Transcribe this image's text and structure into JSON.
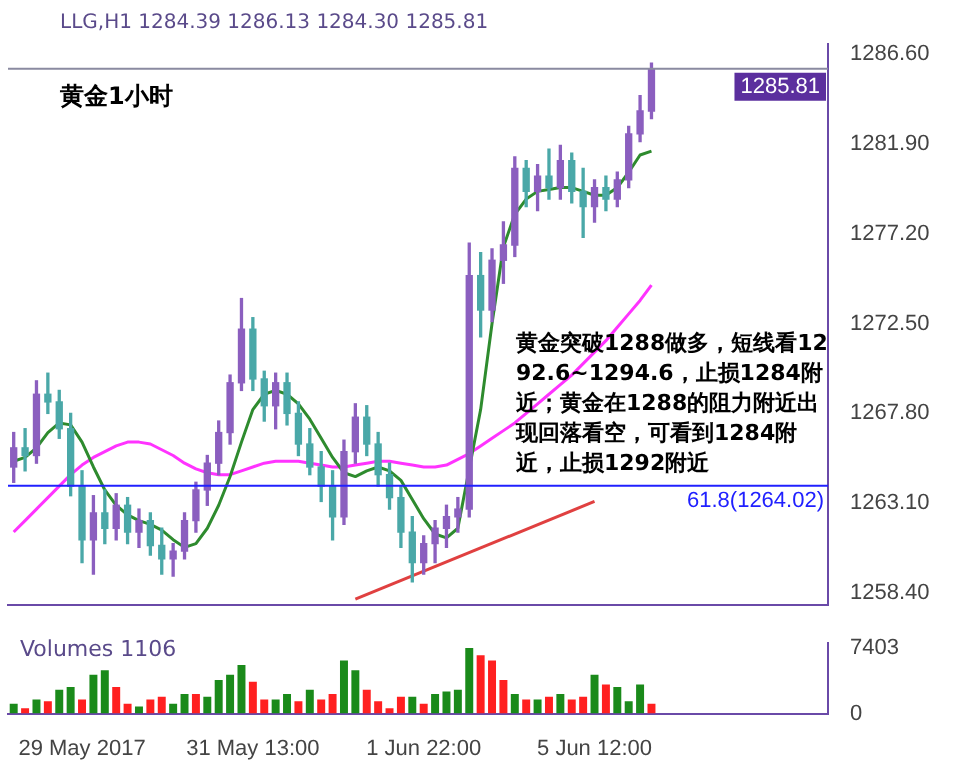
{
  "chart_data": [
    {
      "type": "candlestick",
      "categories": [
        null,
        null,
        null,
        null,
        null,
        null,
        null,
        null,
        null,
        null,
        null,
        null,
        null,
        null,
        null,
        null,
        null,
        null,
        null,
        null,
        null,
        null,
        null,
        null,
        null,
        null,
        null,
        null,
        null,
        null,
        null,
        null,
        null,
        null,
        null,
        null,
        null,
        null,
        null,
        null,
        null,
        null,
        null,
        null,
        null,
        null,
        null,
        null,
        null,
        null,
        null,
        null,
        null,
        null,
        null,
        null,
        null,
        null,
        null,
        null,
        null,
        null,
        null,
        null,
        null,
        null,
        null,
        null,
        null,
        null,
        null,
        null
      ],
      "ohlc": [
        [
          1265.0,
          1266.8,
          1264.2,
          1266.0
        ],
        [
          1266.0,
          1267.0,
          1264.8,
          1265.6
        ],
        [
          1265.6,
          1269.5,
          1265.2,
          1268.8
        ],
        [
          1268.8,
          1269.9,
          1267.8,
          1268.4
        ],
        [
          1268.4,
          1269.0,
          1266.5,
          1267.0
        ],
        [
          1267.0,
          1267.8,
          1263.5,
          1264.0
        ],
        [
          1264.0,
          1264.8,
          1260.0,
          1261.2
        ],
        [
          1261.2,
          1263.5,
          1259.4,
          1262.6
        ],
        [
          1262.6,
          1263.8,
          1261.0,
          1261.8
        ],
        [
          1261.8,
          1263.6,
          1261.2,
          1263.0
        ],
        [
          1263.0,
          1263.4,
          1261.0,
          1261.6
        ],
        [
          1261.6,
          1262.8,
          1260.8,
          1262.2
        ],
        [
          1262.2,
          1262.6,
          1260.4,
          1260.9
        ],
        [
          1260.9,
          1261.8,
          1259.4,
          1260.2
        ],
        [
          1260.2,
          1261.0,
          1259.3,
          1260.6
        ],
        [
          1260.6,
          1262.6,
          1260.2,
          1262.2
        ],
        [
          1262.2,
          1264.2,
          1261.6,
          1263.8
        ],
        [
          1263.8,
          1265.6,
          1263.0,
          1265.2
        ],
        [
          1265.2,
          1267.4,
          1264.6,
          1266.8
        ],
        [
          1266.8,
          1269.8,
          1266.2,
          1269.4
        ],
        [
          1269.4,
          1273.8,
          1269.0,
          1272.2
        ],
        [
          1272.2,
          1272.8,
          1269.0,
          1269.6
        ],
        [
          1269.6,
          1270.0,
          1267.4,
          1268.2
        ],
        [
          1268.2,
          1269.9,
          1267.0,
          1269.4
        ],
        [
          1269.4,
          1269.9,
          1267.2,
          1267.8
        ],
        [
          1267.8,
          1268.4,
          1265.6,
          1266.2
        ],
        [
          1266.2,
          1267.0,
          1264.6,
          1265.0
        ],
        [
          1265.0,
          1265.8,
          1263.2,
          1264.0
        ],
        [
          1264.0,
          1264.8,
          1261.2,
          1262.4
        ],
        [
          1262.4,
          1266.4,
          1262.0,
          1265.8
        ],
        [
          1265.8,
          1268.3,
          1265.2,
          1267.6
        ],
        [
          1267.6,
          1268.2,
          1265.6,
          1266.2
        ],
        [
          1266.2,
          1266.8,
          1264.0,
          1264.6
        ],
        [
          1264.6,
          1265.2,
          1262.8,
          1263.4
        ],
        [
          1263.4,
          1264.0,
          1260.8,
          1261.6
        ],
        [
          1261.6,
          1262.4,
          1259.0,
          1260.0
        ],
        [
          1260.0,
          1261.4,
          1259.4,
          1261.0
        ],
        [
          1261.0,
          1262.2,
          1260.0,
          1261.8
        ],
        [
          1261.8,
          1263.0,
          1260.8,
          1262.4
        ],
        [
          1262.4,
          1263.4,
          1261.6,
          1262.8
        ],
        [
          1262.8,
          1276.7,
          1262.4,
          1275.0
        ],
        [
          1275.0,
          1276.2,
          1271.8,
          1273.2
        ],
        [
          1273.2,
          1276.4,
          1272.6,
          1275.8
        ],
        [
          1275.8,
          1277.8,
          1274.6,
          1276.6
        ],
        [
          1276.6,
          1281.2,
          1276.0,
          1280.6
        ],
        [
          1280.6,
          1281.0,
          1278.6,
          1279.4
        ],
        [
          1279.4,
          1280.8,
          1278.4,
          1280.2
        ],
        [
          1280.2,
          1281.6,
          1279.0,
          1279.6
        ],
        [
          1279.6,
          1281.8,
          1279.0,
          1281.0
        ],
        [
          1281.0,
          1281.4,
          1278.8,
          1279.4
        ],
        [
          1279.4,
          1280.6,
          1277.0,
          1278.6
        ],
        [
          1278.6,
          1280.0,
          1277.8,
          1279.6
        ],
        [
          1279.6,
          1280.2,
          1278.4,
          1279.0
        ],
        [
          1279.0,
          1280.4,
          1278.6,
          1280.0
        ],
        [
          1280.0,
          1282.8,
          1279.6,
          1282.4
        ],
        [
          1282.4,
          1284.4,
          1282.0,
          1283.6
        ],
        [
          1283.6,
          1286.1,
          1283.2,
          1285.81
        ],
        null,
        null,
        null,
        null,
        null,
        null,
        null,
        null,
        null,
        null,
        null,
        null,
        null,
        null,
        null
      ],
      "colors": [
        "#8b5fbf",
        "#4aa8a8",
        "#8b5fbf",
        "#4aa8a8",
        "#4aa8a8",
        "#4aa8a8",
        "#4aa8a8",
        "#8b5fbf",
        "#4aa8a8",
        "#8b5fbf",
        "#4aa8a8",
        "#8b5fbf",
        "#4aa8a8",
        "#4aa8a8",
        "#8b5fbf",
        "#8b5fbf",
        "#8b5fbf",
        "#8b5fbf",
        "#8b5fbf",
        "#8b5fbf",
        "#8b5fbf",
        "#4aa8a8",
        "#4aa8a8",
        "#8b5fbf",
        "#4aa8a8",
        "#4aa8a8",
        "#4aa8a8",
        "#4aa8a8",
        "#4aa8a8",
        "#8b5fbf",
        "#8b5fbf",
        "#4aa8a8",
        "#4aa8a8",
        "#4aa8a8",
        "#4aa8a8",
        "#4aa8a8",
        "#8b5fbf",
        "#8b5fbf",
        "#8b5fbf",
        "#8b5fbf",
        "#8b5fbf",
        "#4aa8a8",
        "#8b5fbf",
        "#8b5fbf",
        "#8b5fbf",
        "#4aa8a8",
        "#8b5fbf",
        "#4aa8a8",
        "#8b5fbf",
        "#4aa8a8",
        "#4aa8a8",
        "#8b5fbf",
        "#4aa8a8",
        "#8b5fbf",
        "#8b5fbf",
        "#8b5fbf",
        "#8b5fbf",
        null,
        null,
        null,
        null,
        null,
        null,
        null,
        null,
        null,
        null,
        null,
        null,
        null,
        null,
        null
      ],
      "series": [
        {
          "type": "line",
          "color": "#2e8b2e",
          "values": [
            1265.3,
            1265.5,
            1266,
            1266.8,
            1267.3,
            1267.2,
            1266.3,
            1265,
            1263.8,
            1263,
            1262.5,
            1262.2,
            1262,
            1261.7,
            1261.2,
            1260.8,
            1261,
            1261.8,
            1263,
            1264.5,
            1266.3,
            1268,
            1268.8,
            1269,
            1268.8,
            1268.3,
            1267.5,
            1266.5,
            1265.5,
            1264.7,
            1264.5,
            1264.8,
            1265,
            1264.8,
            1264.3,
            1263.3,
            1262.3,
            1261.5,
            1261.3,
            1261.8,
            null,
            1268,
            1272.5,
            1276.5,
            1278.2,
            1279,
            1279.4,
            1279.5,
            1279.6,
            1279.6,
            1279.4,
            1279.2,
            1279.2,
            1279.6,
            1280.4,
            1281.3,
            1281.5,
            null,
            null,
            null,
            null,
            null,
            null,
            null,
            null,
            null,
            null,
            null,
            null,
            null,
            null,
            null
          ]
        },
        {
          "type": "line",
          "color": "#ff33ff",
          "values": [
            1261.6,
            1262.2,
            1262.8,
            1263.4,
            1264,
            1264.6,
            1265.1,
            1265.5,
            1265.8,
            1266.1,
            1266.3,
            1266.3,
            1266.2,
            1265.9,
            1265.6,
            1265.2,
            1264.9,
            1264.7,
            1264.6,
            1264.6,
            1264.8,
            1265,
            1265.2,
            1265.3,
            1265.3,
            1265.3,
            1265.2,
            1265.1,
            1265,
            1265,
            1265.1,
            1265.2,
            1265.3,
            1265.3,
            1265.2,
            1265.1,
            1265,
            1265,
            1265.1,
            1265.4,
            1265.7,
            1266.1,
            1266.5,
            1266.9,
            1267.3,
            1267.8,
            1268.3,
            1268.8,
            1269.3,
            1269.8,
            1270.4,
            1271,
            1271.6,
            1272.3,
            1273,
            1273.7,
            1274.5,
            null,
            null,
            null,
            null,
            null,
            null,
            null,
            null,
            null,
            null,
            null,
            null,
            null,
            null,
            null
          ]
        },
        {
          "type": "line",
          "color": "#e04040",
          "values": [
            null,
            null,
            null,
            null,
            null,
            null,
            null,
            null,
            null,
            null,
            null,
            null,
            null,
            null,
            null,
            null,
            null,
            null,
            null,
            null,
            null,
            null,
            null,
            null,
            null,
            null,
            null,
            null,
            null,
            null,
            1258.1,
            null,
            null,
            null,
            null,
            null,
            null,
            null,
            null,
            null,
            null,
            null,
            null,
            null,
            null,
            null,
            null,
            null,
            null,
            null,
            null,
            1263.2,
            null,
            null,
            null,
            null,
            null,
            null,
            null,
            null,
            null,
            null,
            null,
            null,
            null,
            null,
            null,
            null,
            null,
            null,
            null,
            null
          ]
        }
      ],
      "ylim": [
        1257.8,
        1287.1
      ],
      "yticks": [
        {
          "value": 1258.4,
          "label": "1258.40"
        },
        {
          "value": 1263.1,
          "label": "1263.10"
        },
        {
          "value": 1267.8,
          "label": "1267.80"
        },
        {
          "value": 1272.5,
          "label": "1272.50"
        },
        {
          "value": 1277.2,
          "label": "1277.20"
        },
        {
          "value": 1281.9,
          "label": "1281.90"
        },
        {
          "value": 1286.6,
          "label": "1286.60"
        }
      ],
      "ref_lines": [
        {
          "axis": "y",
          "value": 1285.81,
          "label": "1285.81",
          "color": "#8a8aa0"
        },
        {
          "axis": "y",
          "value": 1264.02,
          "label": "61.8(1264.02)",
          "color": "#2020ff"
        }
      ],
      "annotations": [
        "LLG,H1  1284.39 1286.13 1284.30 1285.81",
        "黄金1小时",
        "黄金突破1288做多，短线看1292.6~1294.6，止损1284附近；黄金在1288的阻力附近出现回落看空，可看到1284附近，止损1292附近"
      ],
      "tick_labels": "y"
    },
    {
      "type": "bar",
      "categories": [
        null,
        null,
        null,
        null,
        null,
        null,
        "29 May 2017",
        null,
        null,
        null,
        null,
        null,
        null,
        null,
        null,
        null,
        null,
        null,
        null,
        null,
        null,
        "31 May 13:00",
        null,
        null,
        null,
        null,
        null,
        null,
        null,
        null,
        null,
        null,
        null,
        null,
        null,
        null,
        "1 Jun 22:00",
        null,
        null,
        null,
        null,
        null,
        null,
        null,
        null,
        null,
        null,
        null,
        null,
        null,
        null,
        "5 Jun 12:00",
        null,
        null,
        null,
        null,
        null,
        null,
        null,
        null,
        null,
        null,
        null,
        null,
        null,
        null,
        null,
        null,
        null,
        null,
        null,
        null
      ],
      "values": [
        1100,
        600,
        1600,
        1400,
        2700,
        3000,
        1600,
        4400,
        4900,
        3000,
        1100,
        800,
        1600,
        1900,
        1100,
        2200,
        2200,
        1900,
        3800,
        4400,
        5500,
        3600,
        1600,
        1600,
        2200,
        1400,
        2700,
        1600,
        2200,
        6000,
        4900,
        2700,
        1400,
        600,
        1900,
        1900,
        1100,
        2200,
        2500,
        2700,
        7403,
        6600,
        6000,
        3800,
        2200,
        1600,
        1600,
        1900,
        2200,
        1600,
        1900,
        4400,
        3300,
        3000,
        1400,
        3300,
        1100,
        null,
        null,
        null,
        null,
        null,
        null,
        null,
        null,
        null,
        null,
        null,
        null,
        null,
        null,
        null
      ],
      "colors": [
        "#1a8a1a",
        "#ff2020",
        "#1a8a1a",
        "#ff2020",
        "#1a8a1a",
        "#1a8a1a",
        "#ff2020",
        "#1a8a1a",
        "#1a8a1a",
        "#ff2020",
        "#ff2020",
        "#1a8a1a",
        "#ff2020",
        "#ff2020",
        "#1a8a1a",
        "#1a8a1a",
        "#ff2020",
        "#1a8a1a",
        "#1a8a1a",
        "#1a8a1a",
        "#1a8a1a",
        "#ff2020",
        "#ff2020",
        "#1a8a1a",
        "#1a8a1a",
        "#ff2020",
        "#1a8a1a",
        "#ff2020",
        "#ff2020",
        "#1a8a1a",
        "#1a8a1a",
        "#ff2020",
        "#ff2020",
        "#ff2020",
        "#ff2020",
        "#1a8a1a",
        "#ff2020",
        "#1a8a1a",
        "#1a8a1a",
        "#1a8a1a",
        "#1a8a1a",
        "#ff2020",
        "#ff2020",
        "#ff2020",
        "#1a8a1a",
        "#ff2020",
        "#1a8a1a",
        "#ff2020",
        "#1a8a1a",
        "#ff2020",
        "#ff2020",
        "#1a8a1a",
        "#ff2020",
        "#1a8a1a",
        "#1a8a1a",
        "#1a8a1a",
        "#ff2020",
        null,
        null,
        null,
        null,
        null,
        null,
        null,
        null,
        null,
        null,
        null,
        null,
        null,
        null,
        null
      ],
      "ylim": [
        0,
        7950
      ],
      "yticks": [
        0,
        7403
      ],
      "annotations": [
        "Volumes 1106"
      ]
    }
  ]
}
